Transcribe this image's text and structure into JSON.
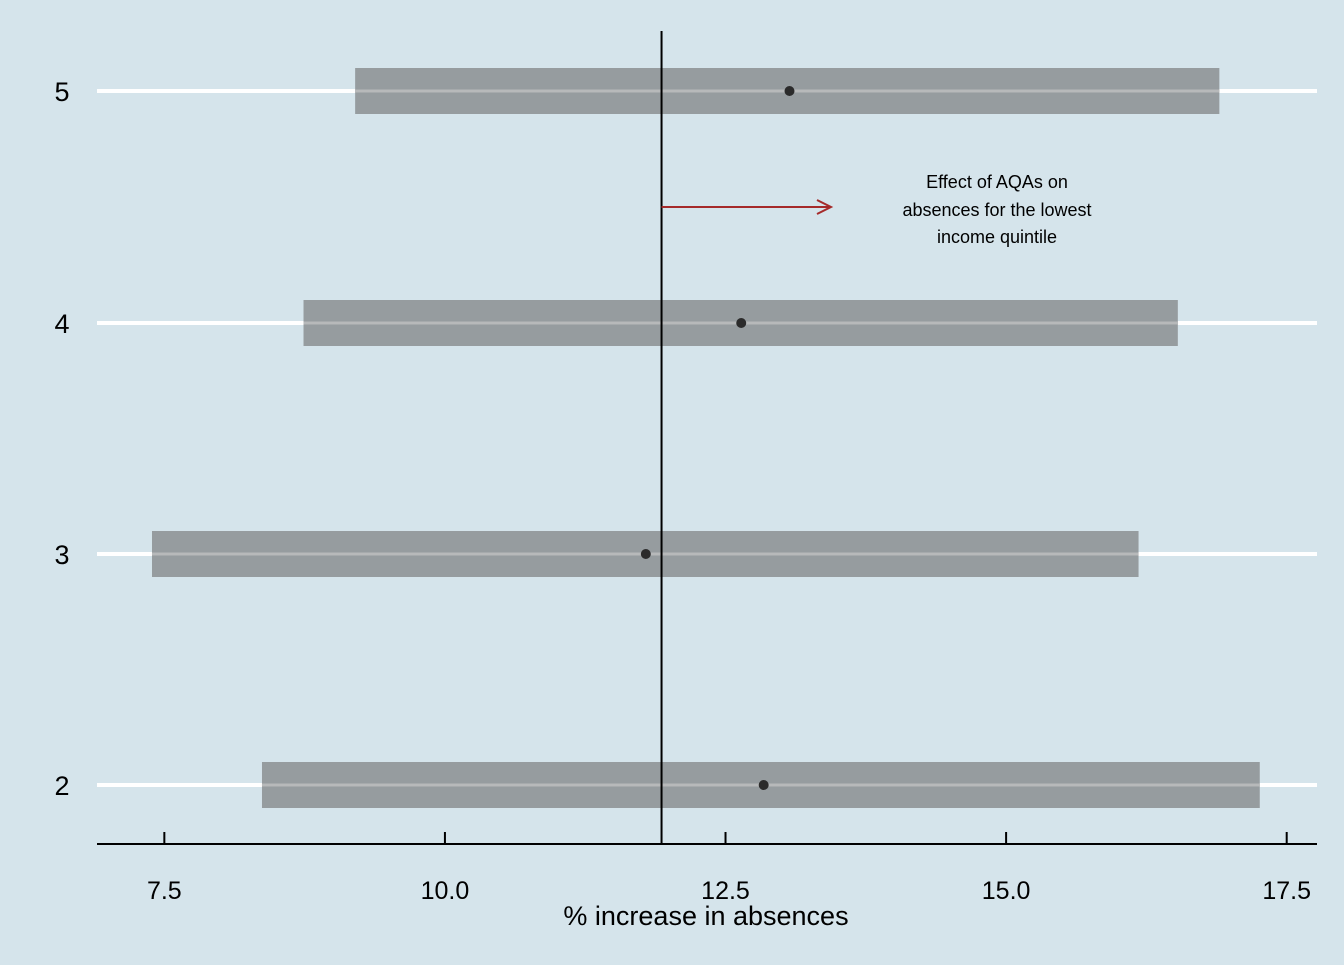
{
  "chart_data": {
    "type": "scatter",
    "title": "",
    "xlabel": "% increase in absences",
    "ylabel": "",
    "xlim": [
      6.9,
      17.77
    ],
    "xticks": [
      7.5,
      10.0,
      12.5,
      15.0,
      17.5
    ],
    "xtick_labels": [
      "7.5",
      "10.0",
      "12.5",
      "15.0",
      "17.5"
    ],
    "categories": [
      "5",
      "4",
      "3",
      "2"
    ],
    "points": [
      {
        "category": "5",
        "estimate": 13.07,
        "ci_low": 9.2,
        "ci_high": 16.9
      },
      {
        "category": "4",
        "estimate": 12.64,
        "ci_low": 8.74,
        "ci_high": 16.53
      },
      {
        "category": "3",
        "estimate": 11.79,
        "ci_low": 7.39,
        "ci_high": 16.18
      },
      {
        "category": "2",
        "estimate": 12.84,
        "ci_low": 8.37,
        "ci_high": 17.26
      }
    ],
    "reference_line": {
      "x": 11.93
    },
    "annotation": {
      "lines": [
        "Effect of AQAs on",
        "absences for the lowest",
        "income quintile"
      ],
      "arrow_color": "#a52a2a"
    },
    "grid": true,
    "colors": {
      "background": "#d5e4eb",
      "ci_bar": "#969c9f",
      "point": "#2b2b2b",
      "gridline": "#ffffff",
      "reference_line": "#000000"
    }
  }
}
